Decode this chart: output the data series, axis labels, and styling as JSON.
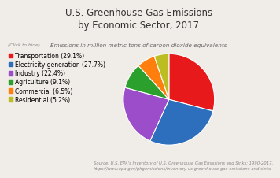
{
  "title": "U.S. Greenhouse Gas Emissions\nby Economic Sector, 2017",
  "subtitle": "Emissions in million metric tons of carbon dioxide equivalents",
  "click_note": "(Click to hide)",
  "source_line1": "Source: U.S. EPA's Inventory of U.S. Greenhouse Gas Emissions and Sinks: 1990-2017.",
  "source_line2": "https://www.epa.gov/ghgemissions/inventory-us-greenhouse-gas-emissions-and-sinks",
  "sectors": [
    "Transportation (29.1%)",
    "Electricity generation (27.7%)",
    "Industry (22.4%)",
    "Agriculture (9.1%)",
    "Commercial (6.5%)",
    "Residential (5.2%)"
  ],
  "values": [
    29.1,
    27.7,
    22.4,
    9.1,
    6.5,
    5.2
  ],
  "colors": [
    "#e8191a",
    "#2d6fbd",
    "#9b4dca",
    "#2ca02c",
    "#ff7f0e",
    "#bcbd22"
  ],
  "startangle": 90,
  "background_color": "#f0ede8",
  "title_fontsize": 8.5,
  "subtitle_fontsize": 5.2,
  "click_fontsize": 4.2,
  "legend_fontsize": 5.5,
  "source_fontsize": 3.8
}
